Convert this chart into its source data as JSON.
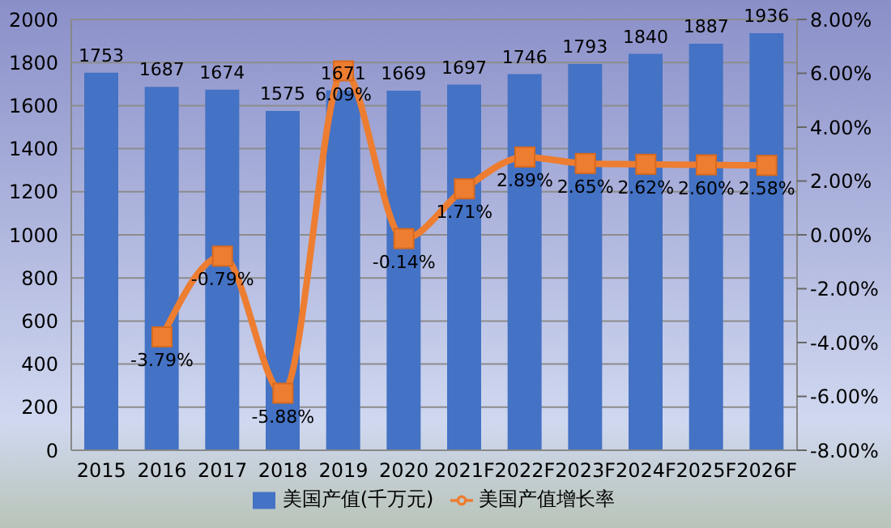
{
  "chart_data": {
    "type": "bar",
    "categories": [
      "2015",
      "2016",
      "2017",
      "2018",
      "2019",
      "2020",
      "2021F",
      "2022F",
      "2023F",
      "2024F",
      "2025F",
      "2026F"
    ],
    "series": [
      {
        "name": "美国产值(千万元)",
        "color": "#4472c4",
        "values": [
          1753,
          1687,
          1674,
          1575,
          1671,
          1669,
          1697,
          1746,
          1793,
          1840,
          1887,
          1936
        ],
        "value_labels": [
          "1753",
          "1687",
          "1674",
          "1575",
          "1671",
          "1669",
          "1697",
          "1746",
          "1793",
          "1840",
          "1887",
          "1936"
        ]
      },
      {
        "name": "美国产值增长率",
        "type": "line",
        "axis": "y2",
        "color": "#ed7d31",
        "marker": "square",
        "values": [
          null,
          -3.79,
          -0.79,
          -5.88,
          6.09,
          -0.14,
          1.71,
          2.89,
          2.65,
          2.62,
          2.6,
          2.58
        ],
        "value_labels": [
          null,
          "-3.79%",
          "-0.79%",
          "-5.88%",
          "6.09%",
          "-0.14%",
          "1.71%",
          "2.89%",
          "2.65%",
          "2.62%",
          "2.60%",
          "2.58%"
        ]
      }
    ],
    "ylim": [
      0,
      2000
    ],
    "yticks": [
      0,
      200,
      400,
      600,
      800,
      1000,
      1200,
      1400,
      1600,
      1800,
      2000
    ],
    "y2lim": [
      -8,
      8
    ],
    "y2ticks": [
      {
        "value": -8,
        "label": "-8.00%"
      },
      {
        "value": -6,
        "label": "-6.00%"
      },
      {
        "value": -4,
        "label": "-4.00%"
      },
      {
        "value": -2,
        "label": "-2.00%"
      },
      {
        "value": 0,
        "label": "0.00%"
      },
      {
        "value": 2,
        "label": "2.00%"
      },
      {
        "value": 4,
        "label": "4.00%"
      },
      {
        "value": 6,
        "label": "6.00%"
      },
      {
        "value": 8,
        "label": "8.00%"
      }
    ],
    "grid": "y",
    "legend": "bottom"
  }
}
